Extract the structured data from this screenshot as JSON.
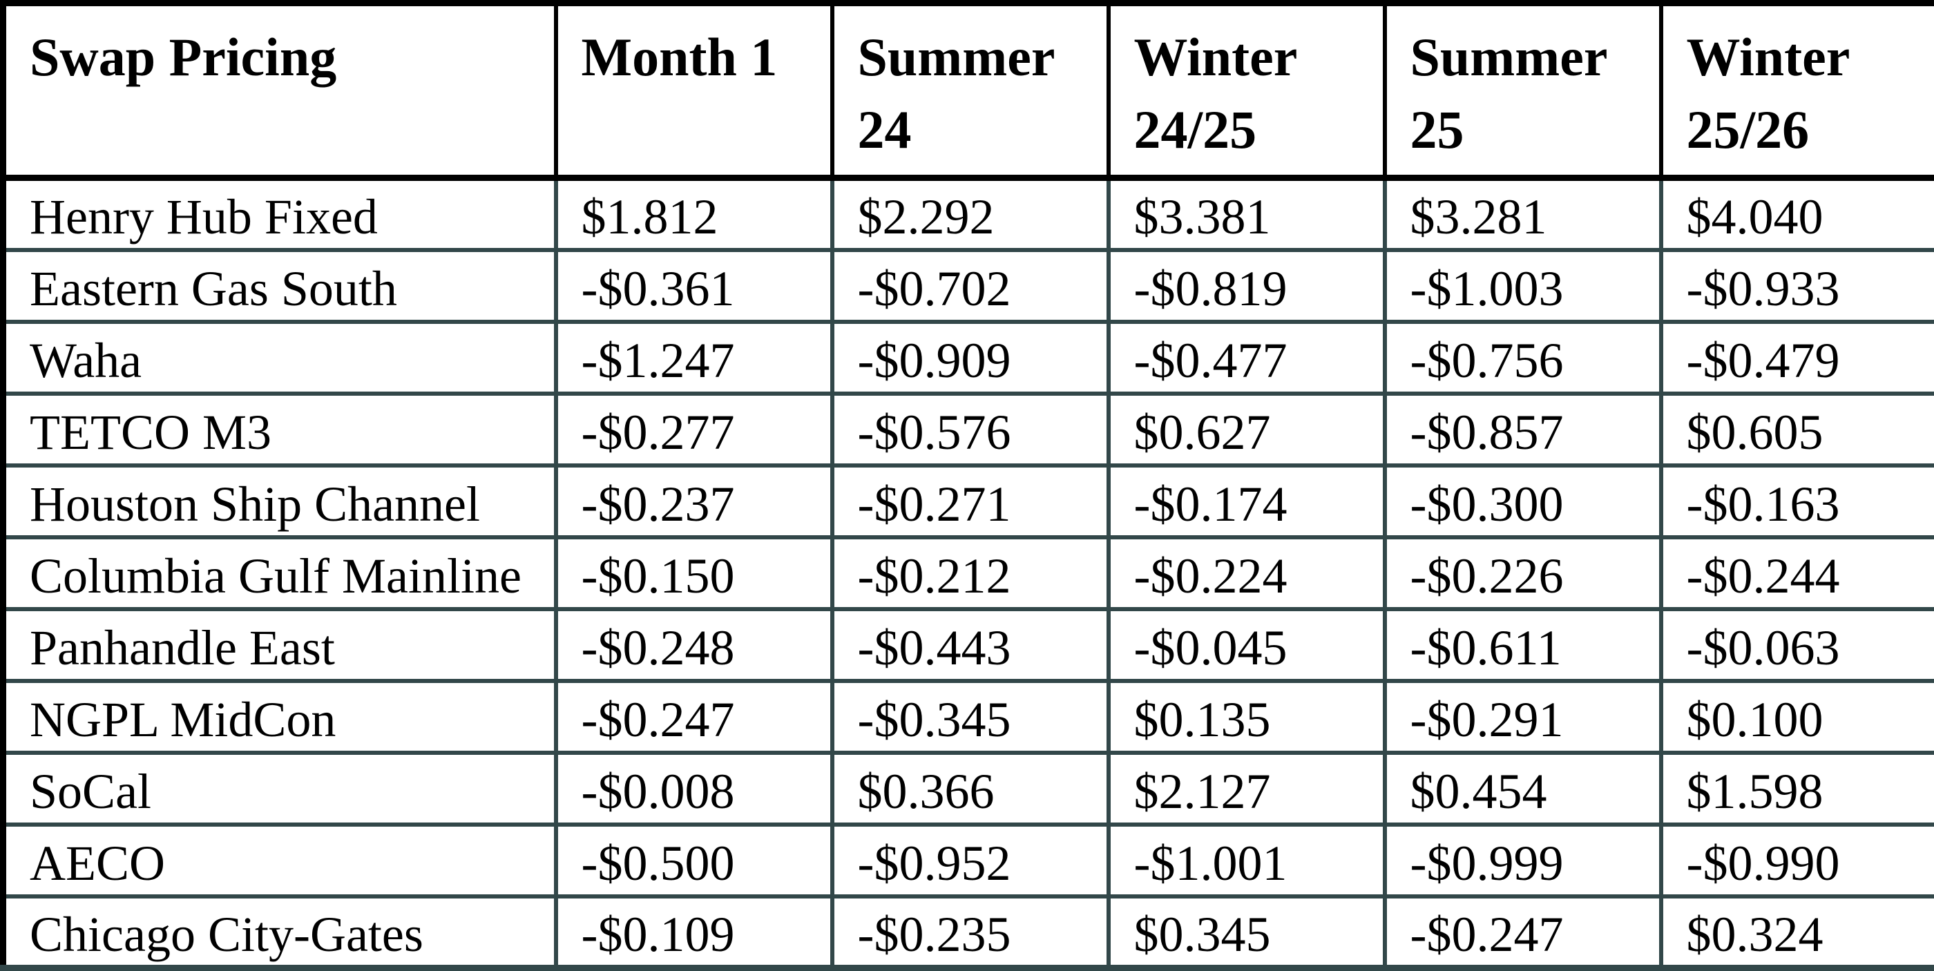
{
  "table": {
    "title_header": "Swap Pricing",
    "columns": [
      "Month 1",
      "Summer 24",
      "Winter 24/25",
      "Summer 25",
      "Winter 25/26"
    ],
    "rows": [
      {
        "label": "Henry Hub Fixed",
        "values": [
          "$1.812",
          "$2.292",
          "$3.381",
          "$3.281",
          "$4.040"
        ]
      },
      {
        "label": "Eastern Gas South",
        "values": [
          "-$0.361",
          "-$0.702",
          "-$0.819",
          "-$1.003",
          "-$0.933"
        ]
      },
      {
        "label": "Waha",
        "values": [
          "-$1.247",
          "-$0.909",
          "-$0.477",
          "-$0.756",
          "-$0.479"
        ]
      },
      {
        "label": "TETCO M3",
        "values": [
          "-$0.277",
          "-$0.576",
          "$0.627",
          "-$0.857",
          "$0.605"
        ]
      },
      {
        "label": "Houston Ship Channel",
        "values": [
          "-$0.237",
          "-$0.271",
          "-$0.174",
          "-$0.300",
          "-$0.163"
        ]
      },
      {
        "label": "Columbia Gulf Mainline",
        "values": [
          "-$0.150",
          "-$0.212",
          "-$0.224",
          "-$0.226",
          "-$0.244"
        ]
      },
      {
        "label": "Panhandle East",
        "values": [
          "-$0.248",
          "-$0.443",
          "-$0.045",
          "-$0.611",
          "-$0.063"
        ]
      },
      {
        "label": "NGPL MidCon",
        "values": [
          "-$0.247",
          "-$0.345",
          "$0.135",
          "-$0.291",
          "$0.100"
        ]
      },
      {
        "label": "SoCal",
        "values": [
          "-$0.008",
          "$0.366",
          "$2.127",
          "$0.454",
          "$1.598"
        ]
      },
      {
        "label": "AECO",
        "values": [
          "-$0.500",
          "-$0.952",
          "-$1.001",
          "-$0.999",
          "-$0.990"
        ]
      },
      {
        "label": "Chicago City-Gates",
        "values": [
          "-$0.109",
          "-$0.235",
          "$0.345",
          "-$0.247",
          "$0.324"
        ]
      }
    ]
  },
  "colors": {
    "outer_and_header_border": "#000000",
    "grid_border": "#324749",
    "background": "#ffffff",
    "text": "#000000"
  }
}
